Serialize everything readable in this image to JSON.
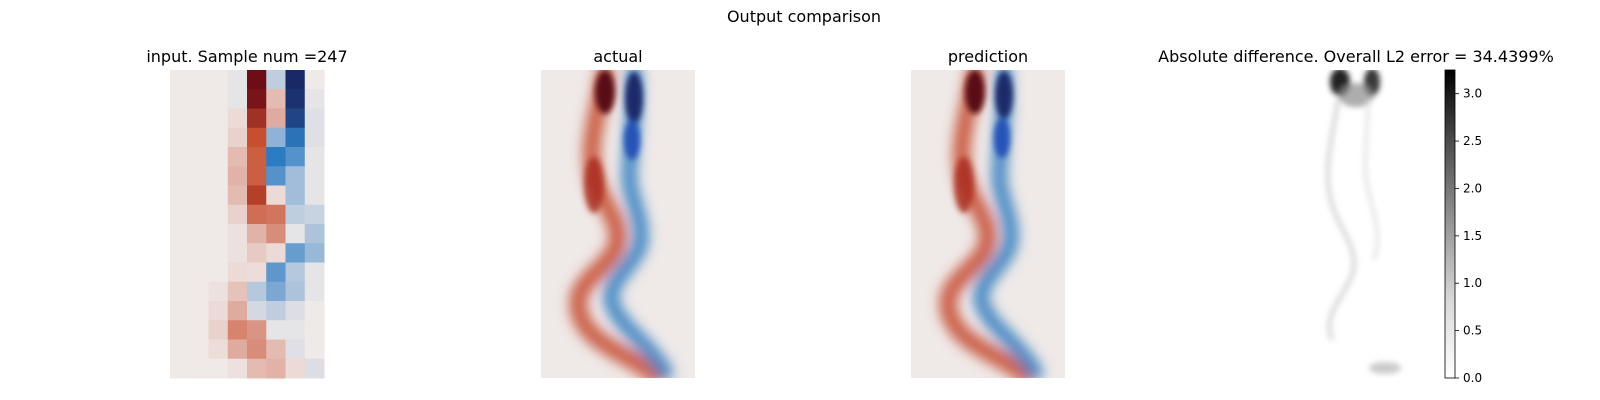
{
  "figure": {
    "suptitle": "Output comparison"
  },
  "chart_data": {
    "type": "heatmap",
    "panels": [
      {
        "id": "input",
        "title": "input. Sample num =247",
        "colormap": "diverging-red-blue",
        "grid": "8x16 coarse",
        "axes_visible": false
      },
      {
        "id": "actual",
        "title": "actual",
        "colormap": "diverging-red-blue",
        "axes_visible": false
      },
      {
        "id": "prediction",
        "title": "prediction",
        "colormap": "diverging-red-blue",
        "axes_visible": false
      },
      {
        "id": "difference",
        "title": "Absolute difference. Overall L2 error = 34.4399%",
        "colormap": "greys",
        "axes_visible": false
      }
    ],
    "colorbar": {
      "range": [
        0.0,
        3.25
      ],
      "ticks": [
        0.0,
        0.5,
        1.0,
        1.5,
        2.0,
        2.5,
        3.0
      ],
      "tick_labels": [
        "0.0",
        "0.5",
        "1.0",
        "1.5",
        "2.0",
        "2.5",
        "3.0"
      ]
    },
    "input_grid": [
      [
        0.0,
        0.0,
        0.0,
        -0.05,
        1.9,
        -0.25,
        -1.9,
        0.0
      ],
      [
        0.0,
        0.0,
        0.0,
        -0.05,
        1.8,
        0.3,
        -1.8,
        -0.05
      ],
      [
        0.0,
        0.0,
        0.0,
        0.1,
        1.4,
        0.4,
        -1.6,
        -0.08
      ],
      [
        0.0,
        0.0,
        0.0,
        0.15,
        1.0,
        -0.5,
        -1.1,
        -0.08
      ],
      [
        0.0,
        0.0,
        0.0,
        0.3,
        0.9,
        -1.0,
        -0.8,
        -0.05
      ],
      [
        0.0,
        0.0,
        0.0,
        0.35,
        0.9,
        -0.8,
        -0.4,
        -0.05
      ],
      [
        0.0,
        0.0,
        0.0,
        0.3,
        1.2,
        0.1,
        -0.4,
        -0.05
      ],
      [
        0.0,
        0.0,
        0.0,
        0.15,
        0.8,
        0.75,
        -0.25,
        -0.2
      ],
      [
        0.0,
        0.0,
        0.0,
        0.05,
        0.35,
        0.6,
        -0.05,
        -0.35
      ],
      [
        0.0,
        0.0,
        0.0,
        0.05,
        0.2,
        0.1,
        -0.7,
        -0.45
      ],
      [
        0.0,
        0.0,
        0.0,
        0.1,
        0.08,
        -0.75,
        -0.3,
        -0.05
      ],
      [
        0.0,
        0.0,
        0.05,
        0.25,
        -0.3,
        -0.6,
        -0.35,
        -0.05
      ],
      [
        0.0,
        0.0,
        0.1,
        0.4,
        -0.15,
        -0.25,
        -0.1,
        0.0
      ],
      [
        0.0,
        0.0,
        0.15,
        0.65,
        0.55,
        -0.05,
        -0.05,
        0.0
      ],
      [
        0.0,
        0.0,
        0.08,
        0.4,
        0.6,
        0.3,
        -0.08,
        0.0
      ],
      [
        0.0,
        0.0,
        0.0,
        0.05,
        0.3,
        0.35,
        0.1,
        -0.1
      ]
    ]
  }
}
